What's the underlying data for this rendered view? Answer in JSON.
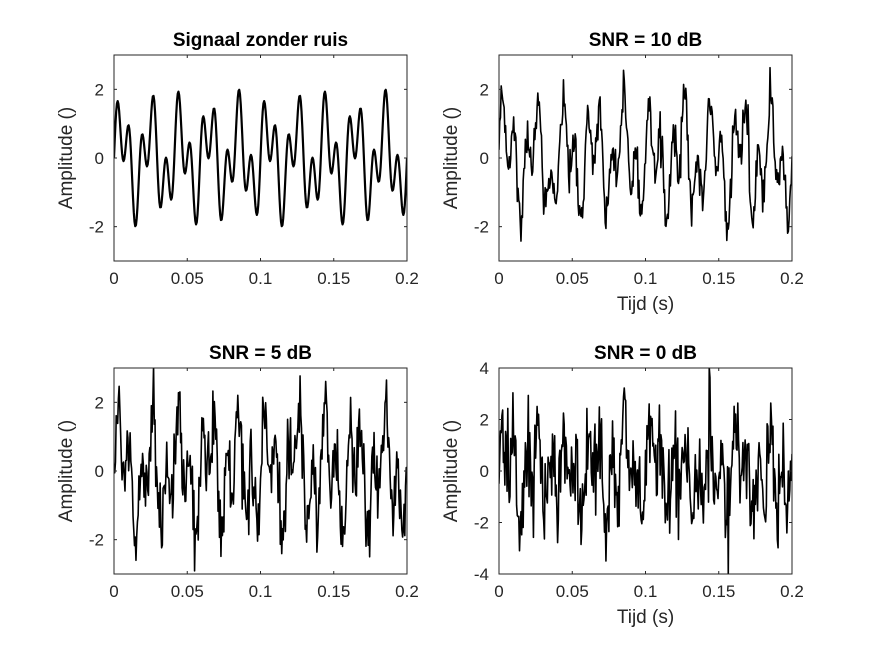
{
  "chart_data": [
    {
      "type": "line",
      "title": "Signaal zonder ruis",
      "xlabel": "",
      "ylabel": "Amplitude ()",
      "xlim": [
        0,
        0.2
      ],
      "ylim": [
        -3,
        3
      ],
      "xticks": [
        "0",
        "0.05",
        "0.1",
        "0.15",
        "0.2"
      ],
      "yticks": [
        "-2",
        "0",
        "2"
      ],
      "grid": false,
      "signal": {
        "components": [
          {
            "amplitude": 1,
            "frequency_hz": 50
          },
          {
            "amplitude": 1,
            "frequency_hz": 120
          }
        ],
        "noise_snr_db": null,
        "x_step": 0.0005
      }
    },
    {
      "type": "line",
      "title": "SNR = 10 dB",
      "xlabel": "Tijd (s)",
      "ylabel": "Amplitude ()",
      "xlim": [
        0,
        0.2
      ],
      "ylim": [
        -3,
        3
      ],
      "xticks": [
        "0",
        "0.05",
        "0.1",
        "0.15",
        "0.2"
      ],
      "yticks": [
        "-2",
        "0",
        "2"
      ],
      "grid": false,
      "signal": {
        "components": [
          {
            "amplitude": 1,
            "frequency_hz": 50
          },
          {
            "amplitude": 1,
            "frequency_hz": 120
          }
        ],
        "noise_snr_db": 10,
        "x_step": 0.0005
      }
    },
    {
      "type": "line",
      "title": "SNR = 5 dB",
      "xlabel": "",
      "ylabel": "Amplitude ()",
      "xlim": [
        0,
        0.2
      ],
      "ylim": [
        -3,
        3
      ],
      "xticks": [
        "0",
        "0.05",
        "0.1",
        "0.15",
        "0.2"
      ],
      "yticks": [
        "-2",
        "0",
        "2"
      ],
      "grid": false,
      "signal": {
        "components": [
          {
            "amplitude": 1,
            "frequency_hz": 50
          },
          {
            "amplitude": 1,
            "frequency_hz": 120
          }
        ],
        "noise_snr_db": 5,
        "x_step": 0.0005
      }
    },
    {
      "type": "line",
      "title": "SNR = 0 dB",
      "xlabel": "Tijd (s)",
      "ylabel": "Amplitude ()",
      "xlim": [
        0,
        0.2
      ],
      "ylim": [
        -4,
        4
      ],
      "xticks": [
        "0",
        "0.05",
        "0.1",
        "0.15",
        "0.2"
      ],
      "yticks": [
        "-4",
        "-2",
        "0",
        "2",
        "4"
      ],
      "grid": false,
      "signal": {
        "components": [
          {
            "amplitude": 1,
            "frequency_hz": 50
          },
          {
            "amplitude": 1,
            "frequency_hz": 120
          }
        ],
        "noise_snr_db": 0,
        "x_step": 0.0005
      }
    }
  ],
  "colors": {
    "line": "#000000",
    "axes": "#262626",
    "background": "#ffffff"
  }
}
